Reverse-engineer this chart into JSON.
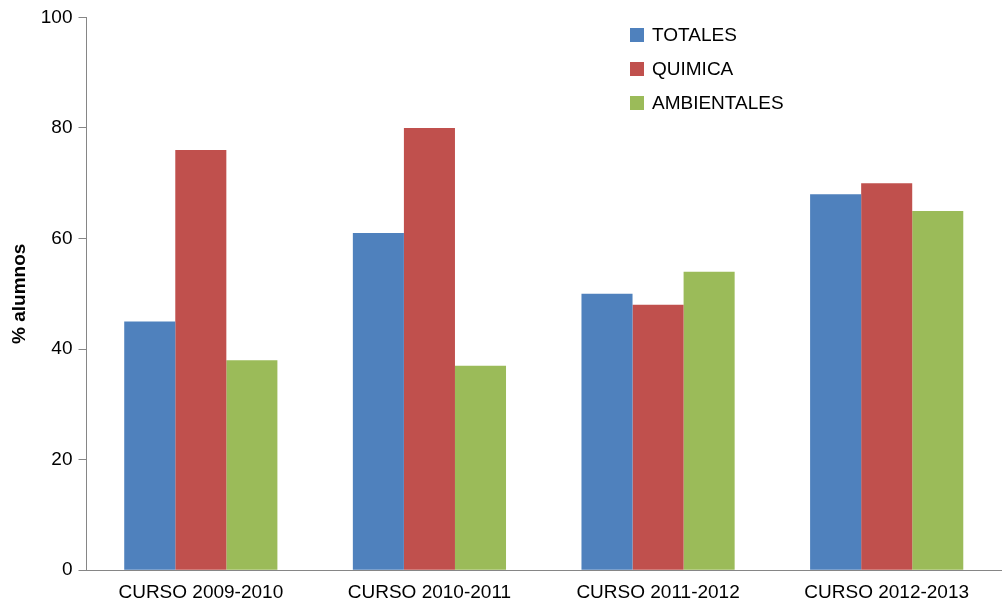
{
  "chart_data": {
    "type": "bar",
    "ylabel": "% alumnos",
    "categories": [
      "CURSO 2009-2010",
      "CURSO 2010-2011",
      "CURSO 2011-2012",
      "CURSO 2012-2013"
    ],
    "series": [
      {
        "name": "TOTALES",
        "color": "#4f81bd",
        "values": [
          45,
          61,
          50,
          68
        ]
      },
      {
        "name": "QUIMICA",
        "color": "#c0504d",
        "values": [
          76,
          80,
          48,
          70
        ]
      },
      {
        "name": "AMBIENTALES",
        "color": "#9bbb59",
        "values": [
          38,
          37,
          54,
          65
        ]
      }
    ],
    "ylim": [
      0,
      100
    ],
    "yticks": [
      0,
      20,
      40,
      60,
      80,
      100
    ],
    "grid": false,
    "legend": "top right"
  }
}
